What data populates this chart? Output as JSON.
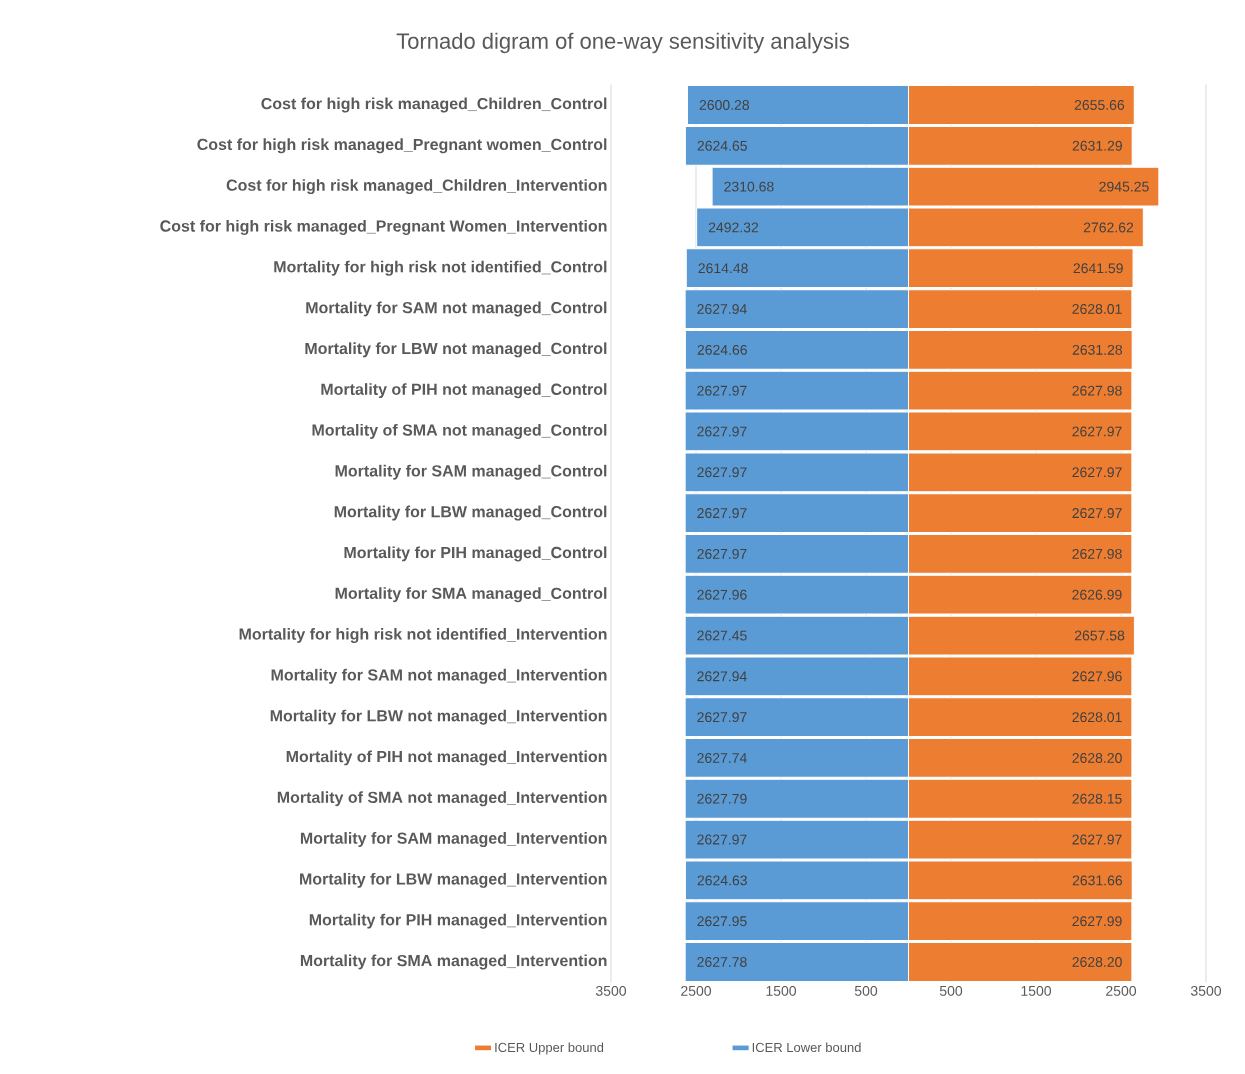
{
  "chart_data": [
    {
      "type": "bar",
      "orientation": "horizontal",
      "title": "Tornado digram of one-way sensitivity analysis",
      "categories": [
        "Cost for high risk managed_Children_Control",
        "Cost for high risk managed_Pregnant women_Control",
        "Cost for high risk managed_Children_Intervention",
        "Cost for high risk managed_Pregnant Women_Intervention",
        "Mortality for high risk not identified_Control",
        "Mortality for SAM not managed_Control",
        "Mortality for LBW not managed_Control",
        "Mortality of PIH not managed_Control",
        "Mortality of SMA not managed_Control",
        "Mortality for SAM managed_Control",
        "Mortality for LBW managed_Control",
        "Mortality for PIH managed_Control",
        "Mortality for SMA managed_Control",
        "Mortality for high risk not identified_Intervention",
        "Mortality for SAM not managed_Intervention",
        "Mortality for LBW not managed_Intervention",
        "Mortality of PIH not managed_Intervention",
        "Mortality of SMA not managed_Intervention",
        "Mortality for SAM managed_Intervention",
        "Mortality for LBW managed_Intervention",
        "Mortality for PIH managed_Intervention",
        "Mortality for SMA managed_Intervention"
      ],
      "series": [
        {
          "name": "ICER Lower bound",
          "color": "#5b9bd5",
          "values": [
            2600.28,
            2624.65,
            2310.68,
            2492.32,
            2614.48,
            2627.94,
            2624.66,
            2627.97,
            2627.97,
            2627.97,
            2627.97,
            2627.97,
            2627.96,
            2627.45,
            2627.94,
            2627.97,
            2627.74,
            2627.79,
            2627.97,
            2624.63,
            2627.95,
            2627.78
          ],
          "value_labels": [
            "2600.28",
            "2624.65",
            "2310.68",
            "2492.32",
            "2614.48",
            "2627.94",
            "2624.66",
            "2627.97",
            "2627.97",
            "2627.97",
            "2627.97",
            "2627.97",
            "2627.96",
            "2627.45",
            "2627.94",
            "2627.97",
            "2627.74",
            "2627.79",
            "2627.97",
            "2624.63",
            "2627.95",
            "2627.78"
          ]
        }
      ],
      "xlim": [
        3500,
        0
      ],
      "xticks": [
        3500,
        2500,
        1500,
        500
      ],
      "grid": "x",
      "legend": "bottom"
    },
    {
      "type": "bar",
      "orientation": "horizontal",
      "categories": [
        null,
        null,
        null,
        null,
        null,
        null,
        null,
        null,
        null,
        null,
        null,
        null,
        null,
        null,
        null,
        null,
        null,
        null,
        null,
        null,
        null,
        null
      ],
      "series": [
        {
          "name": "ICER Upper bound",
          "color": "#ed7d31",
          "values": [
            2655.66,
            2631.29,
            2945.25,
            2762.62,
            2641.59,
            2628.01,
            2631.28,
            2627.98,
            2627.97,
            2627.97,
            2627.97,
            2627.98,
            2626.99,
            2657.58,
            2627.96,
            2628.01,
            2628.2,
            2628.15,
            2627.97,
            2631.66,
            2627.99,
            2628.2
          ],
          "value_labels": [
            "2655.66",
            "2631.29",
            "2945.25",
            "2762.62",
            "2641.59",
            "2628.01",
            "2631.28",
            "2627.98",
            "2627.97",
            "2627.97",
            "2627.97",
            "2627.98",
            "2626.99",
            "2657.58",
            "2627.96",
            "2628.01",
            "2628.20",
            "2628.15",
            "2627.97",
            "2631.66",
            "2627.99",
            "2628.20"
          ]
        }
      ],
      "xlim": [
        0,
        3500
      ],
      "xticks": [
        500,
        1500,
        2500,
        3500
      ],
      "grid": "x",
      "legend": "bottom",
      "tick_labels": "x"
    }
  ]
}
